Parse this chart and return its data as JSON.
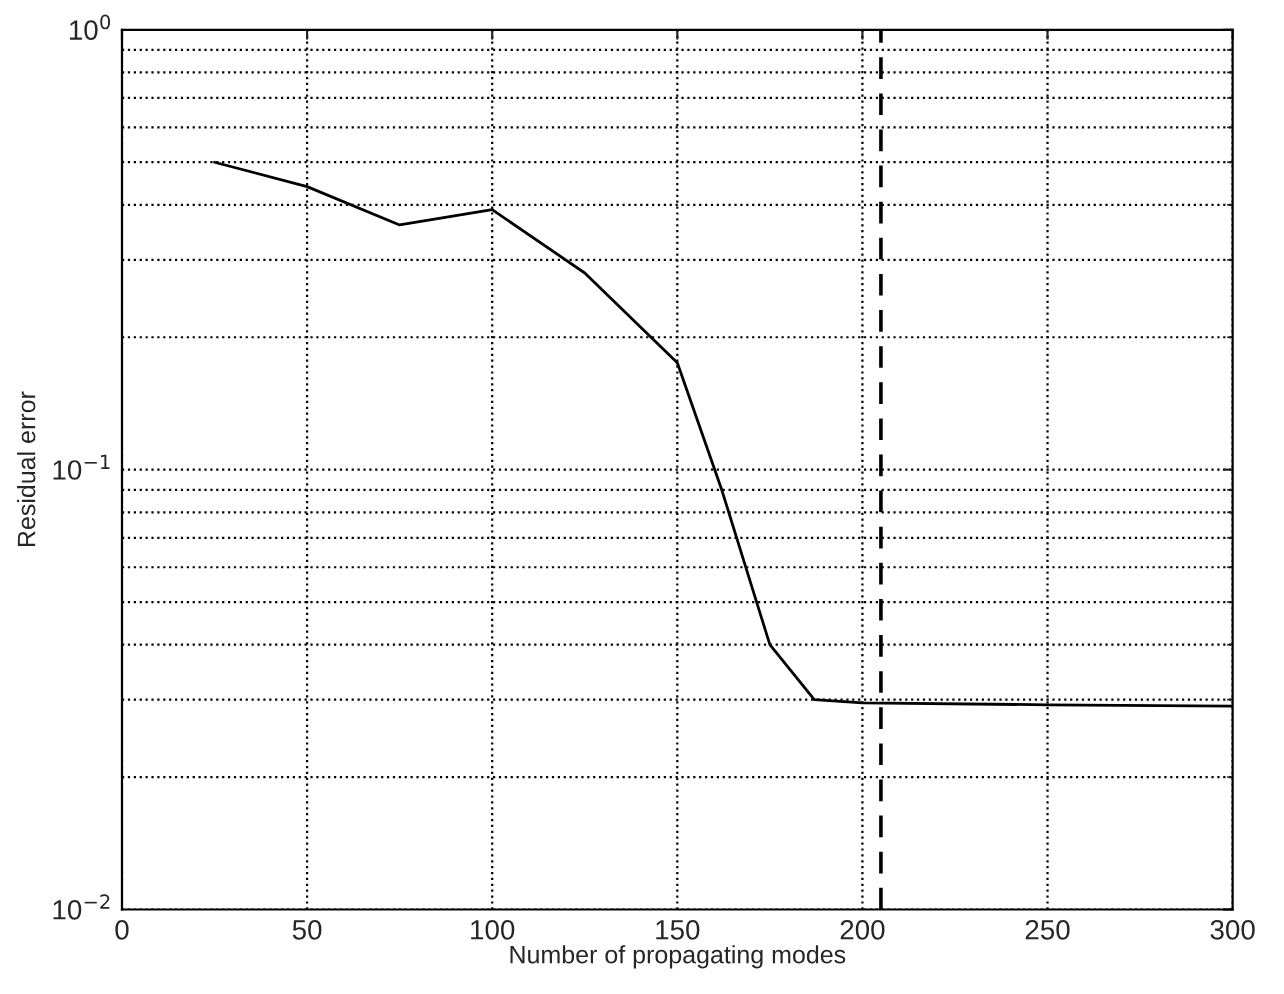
{
  "chart_data": {
    "type": "line",
    "xlabel": "Number of propagating modes",
    "ylabel": "Residual error",
    "x": [
      25,
      50,
      75,
      100,
      125,
      150,
      162,
      175,
      187,
      200,
      250,
      300
    ],
    "series": [
      {
        "color": "#000000",
        "values": [
          0.5,
          0.44,
          0.36,
          0.39,
          0.28,
          0.175,
          0.09,
          0.04,
          0.03,
          0.0295,
          0.0292,
          0.029
        ]
      }
    ],
    "log": "y",
    "xlim": [
      0,
      300
    ],
    "xticks": [
      0,
      50,
      100,
      150,
      200,
      250,
      300
    ],
    "ylim": [
      0.01,
      1
    ],
    "yticks": [
      {
        "value": 0.01,
        "label": "10$^{−2}$"
      },
      {
        "value": 0.1,
        "label": "10$^{−1}$"
      },
      {
        "value": 1,
        "label": "10$^{0}$"
      }
    ],
    "grid": true,
    "marker": "none",
    "line_style": "solid",
    "ref_lines": [
      {
        "axis": "x",
        "value": 205,
        "color": "#000000",
        "line_style": "dashed"
      }
    ]
  }
}
